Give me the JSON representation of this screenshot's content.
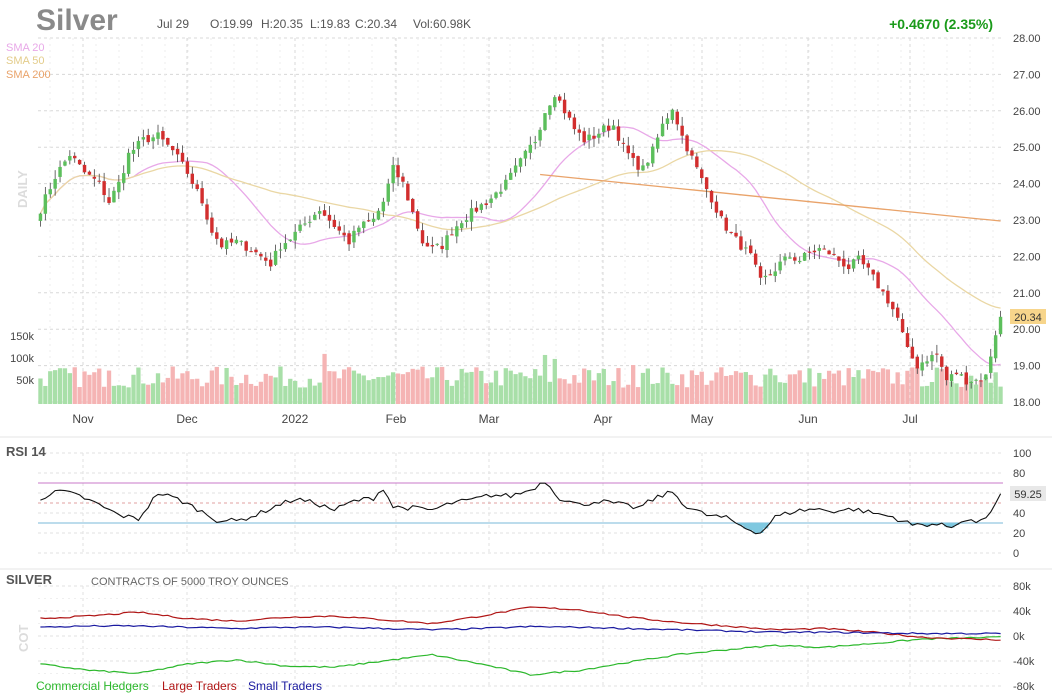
{
  "header": {
    "symbol": "Silver",
    "date": "Jul 29",
    "open": "O:19.99",
    "high": "H:20.35",
    "low": "L:19.83",
    "close": "C:20.34",
    "volume": "Vol:60.98K",
    "change": "+0.4670 (2.35%)"
  },
  "legend": {
    "sma20": "SMA 20",
    "sma50": "SMA 50",
    "sma200": "SMA 200"
  },
  "timeframe": "DAILY",
  "last_price_label": "20.34",
  "rsi": {
    "title": "RSI 14",
    "last_value_label": "59.25"
  },
  "cot": {
    "title": "SILVER",
    "subtitle": "CONTRACTS OF 5000 TROY OUNCES",
    "side_label": "COT",
    "legend": [
      "Commercial Hedgers",
      "Large Traders",
      "Small Traders"
    ]
  },
  "colors": {
    "up": "#5cbf5c",
    "down": "#d22e2e",
    "vol_up": "#a8dfa8",
    "vol_down": "#f5b4b4",
    "sma20": "#e8a8e8",
    "sma50": "#ead7a4",
    "sma200": "#e9a36a",
    "change_positive": "#1a9a1a",
    "rsi_line": "#111111",
    "rsi_upper": "#c878c8",
    "rsi_lower": "#7ab8d8",
    "rsi_fill": "#7fc8e0",
    "commercial": "#2cb82c",
    "large": "#b01616",
    "small": "#1a1aa0"
  },
  "chart_data": [
    {
      "type": "candlestick",
      "title": "Silver",
      "timeframe": "Daily",
      "x_tick_labels": [
        "Nov",
        "Dec",
        "2022",
        "Feb",
        "Mar",
        "Apr",
        "May",
        "Jun",
        "Jul"
      ],
      "y_tick_labels": [
        "28.00",
        "27.00",
        "26.00",
        "25.00",
        "24.00",
        "23.00",
        "22.00",
        "21.00",
        "20.00",
        "19.00",
        "18.00"
      ],
      "ylim": [
        18.0,
        28.0
      ],
      "volume_tick_labels": [
        "150k",
        "100k",
        "50k"
      ],
      "close_path": [
        [
          0,
          23.3
        ],
        [
          3,
          24.2
        ],
        [
          6,
          24.8
        ],
        [
          9,
          24.3
        ],
        [
          12,
          24.0
        ],
        [
          14,
          23.5
        ],
        [
          16,
          24.0
        ],
        [
          18,
          24.8
        ],
        [
          21,
          25.2
        ],
        [
          24,
          25.3
        ],
        [
          27,
          24.9
        ],
        [
          30,
          24.3
        ],
        [
          33,
          23.5
        ],
        [
          35,
          22.7
        ],
        [
          37,
          22.3
        ],
        [
          40,
          22.4
        ],
        [
          43,
          22.2
        ],
        [
          45,
          22.0
        ],
        [
          47,
          21.8
        ],
        [
          49,
          22.3
        ],
        [
          51,
          22.5
        ],
        [
          54,
          22.9
        ],
        [
          57,
          23.3
        ],
        [
          59,
          23.0
        ],
        [
          61,
          22.7
        ],
        [
          63,
          22.4
        ],
        [
          65,
          22.8
        ],
        [
          68,
          23.0
        ],
        [
          70,
          23.5
        ],
        [
          72,
          24.4
        ],
        [
          74,
          24.0
        ],
        [
          76,
          23.2
        ],
        [
          78,
          22.4
        ],
        [
          80,
          22.2
        ],
        [
          82,
          22.3
        ],
        [
          84,
          22.7
        ],
        [
          86,
          23.0
        ],
        [
          89,
          23.3
        ],
        [
          92,
          23.6
        ],
        [
          95,
          24.0
        ],
        [
          98,
          24.6
        ],
        [
          101,
          25.2
        ],
        [
          103,
          26.0
        ],
        [
          105,
          26.5
        ],
        [
          107,
          26.0
        ],
        [
          109,
          25.5
        ],
        [
          111,
          25.2
        ],
        [
          113,
          25.3
        ],
        [
          115,
          25.5
        ],
        [
          117,
          25.6
        ],
        [
          119,
          25.0
        ],
        [
          121,
          24.6
        ],
        [
          123,
          24.4
        ],
        [
          125,
          24.9
        ],
        [
          127,
          25.6
        ],
        [
          129,
          26.1
        ],
        [
          131,
          25.3
        ],
        [
          133,
          24.7
        ],
        [
          135,
          24.1
        ],
        [
          137,
          23.6
        ],
        [
          139,
          23.0
        ],
        [
          141,
          22.6
        ],
        [
          143,
          22.3
        ],
        [
          145,
          22.0
        ],
        [
          147,
          21.3
        ],
        [
          149,
          21.5
        ],
        [
          151,
          21.8
        ],
        [
          153,
          22.0
        ],
        [
          155,
          21.9
        ],
        [
          157,
          22.1
        ],
        [
          159,
          22.2
        ],
        [
          161,
          22.1
        ],
        [
          163,
          21.9
        ],
        [
          165,
          21.7
        ],
        [
          167,
          21.9
        ],
        [
          169,
          21.6
        ],
        [
          171,
          21.2
        ],
        [
          173,
          20.8
        ],
        [
          175,
          20.3
        ],
        [
          177,
          19.4
        ],
        [
          179,
          19.0
        ],
        [
          181,
          19.2
        ],
        [
          183,
          19.3
        ],
        [
          185,
          18.6
        ],
        [
          187,
          18.8
        ],
        [
          189,
          18.6
        ],
        [
          191,
          18.6
        ],
        [
          193,
          18.7
        ],
        [
          195,
          19.9
        ],
        [
          196,
          20.34
        ]
      ],
      "last_price": 20.34,
      "change": "+0.4670 (2.35%)",
      "moving_averages": [
        "SMA 20",
        "SMA 50",
        "SMA 200"
      ]
    },
    {
      "type": "line",
      "title": "RSI 14",
      "y_tick_labels": [
        "100",
        "80",
        "60",
        "40",
        "20",
        "0"
      ],
      "ylim": [
        0,
        100
      ],
      "upper_band": 70,
      "mid_band": 50,
      "lower_band": 30,
      "last_value": 59.25,
      "values": [
        [
          0,
          55
        ],
        [
          4,
          62
        ],
        [
          8,
          57
        ],
        [
          12,
          48
        ],
        [
          16,
          38
        ],
        [
          20,
          34
        ],
        [
          24,
          60
        ],
        [
          28,
          54
        ],
        [
          32,
          44
        ],
        [
          36,
          33
        ],
        [
          40,
          32
        ],
        [
          44,
          38
        ],
        [
          48,
          47
        ],
        [
          52,
          54
        ],
        [
          56,
          50
        ],
        [
          60,
          43
        ],
        [
          64,
          52
        ],
        [
          68,
          55
        ],
        [
          70,
          65
        ],
        [
          72,
          46
        ],
        [
          76,
          45
        ],
        [
          80,
          43
        ],
        [
          84,
          50
        ],
        [
          88,
          53
        ],
        [
          92,
          58
        ],
        [
          96,
          57
        ],
        [
          100,
          63
        ],
        [
          103,
          72
        ],
        [
          106,
          55
        ],
        [
          110,
          48
        ],
        [
          114,
          52
        ],
        [
          118,
          49
        ],
        [
          122,
          45
        ],
        [
          126,
          56
        ],
        [
          129,
          61
        ],
        [
          132,
          46
        ],
        [
          136,
          38
        ],
        [
          140,
          35
        ],
        [
          144,
          25
        ],
        [
          147,
          20
        ],
        [
          150,
          36
        ],
        [
          154,
          42
        ],
        [
          158,
          44
        ],
        [
          162,
          42
        ],
        [
          166,
          44
        ],
        [
          170,
          40
        ],
        [
          174,
          36
        ],
        [
          178,
          28
        ],
        [
          182,
          29
        ],
        [
          186,
          26
        ],
        [
          188,
          33
        ],
        [
          192,
          31
        ],
        [
          195,
          48
        ],
        [
          196,
          59.25
        ]
      ]
    },
    {
      "type": "line",
      "title": "SILVER",
      "subtitle": "CONTRACTS OF 5000 TROY OUNCES",
      "y_tick_labels": [
        "80k",
        "40k",
        "0k",
        "-40k",
        "-80k"
      ],
      "ylim": [
        -80000,
        80000
      ],
      "series": [
        {
          "name": "Commercial Hedgers",
          "values": [
            [
              0,
              -45000
            ],
            [
              10,
              -55000
            ],
            [
              20,
              -60000
            ],
            [
              30,
              -45000
            ],
            [
              40,
              -38000
            ],
            [
              50,
              -48000
            ],
            [
              60,
              -50000
            ],
            [
              70,
              -40000
            ],
            [
              80,
              -30000
            ],
            [
              90,
              -45000
            ],
            [
              100,
              -62000
            ],
            [
              110,
              -55000
            ],
            [
              120,
              -42000
            ],
            [
              130,
              -30000
            ],
            [
              140,
              -22000
            ],
            [
              150,
              -15000
            ],
            [
              160,
              -18000
            ],
            [
              170,
              -12000
            ],
            [
              180,
              -5000
            ],
            [
              190,
              -3000
            ],
            [
              196,
              -2000
            ]
          ]
        },
        {
          "name": "Large Traders",
          "values": [
            [
              0,
              28000
            ],
            [
              10,
              32000
            ],
            [
              20,
              38000
            ],
            [
              30,
              28000
            ],
            [
              40,
              24000
            ],
            [
              50,
              30000
            ],
            [
              60,
              32000
            ],
            [
              70,
              26000
            ],
            [
              80,
              20000
            ],
            [
              90,
              32000
            ],
            [
              100,
              46000
            ],
            [
              110,
              42000
            ],
            [
              120,
              30000
            ],
            [
              130,
              22000
            ],
            [
              140,
              16000
            ],
            [
              150,
              10000
            ],
            [
              160,
              12000
            ],
            [
              170,
              6000
            ],
            [
              180,
              -2000
            ],
            [
              190,
              -5000
            ],
            [
              196,
              -6000
            ]
          ]
        },
        {
          "name": "Small Traders",
          "values": [
            [
              0,
              14000
            ],
            [
              10,
              16000
            ],
            [
              20,
              16000
            ],
            [
              30,
              14000
            ],
            [
              40,
              12000
            ],
            [
              50,
              14000
            ],
            [
              60,
              14000
            ],
            [
              70,
              12000
            ],
            [
              80,
              10000
            ],
            [
              90,
              12000
            ],
            [
              100,
              15000
            ],
            [
              110,
              14000
            ],
            [
              120,
              12000
            ],
            [
              130,
              10000
            ],
            [
              140,
              8000
            ],
            [
              150,
              6000
            ],
            [
              160,
              6000
            ],
            [
              170,
              5000
            ],
            [
              180,
              4000
            ],
            [
              190,
              4000
            ],
            [
              196,
              4000
            ]
          ]
        }
      ]
    }
  ]
}
